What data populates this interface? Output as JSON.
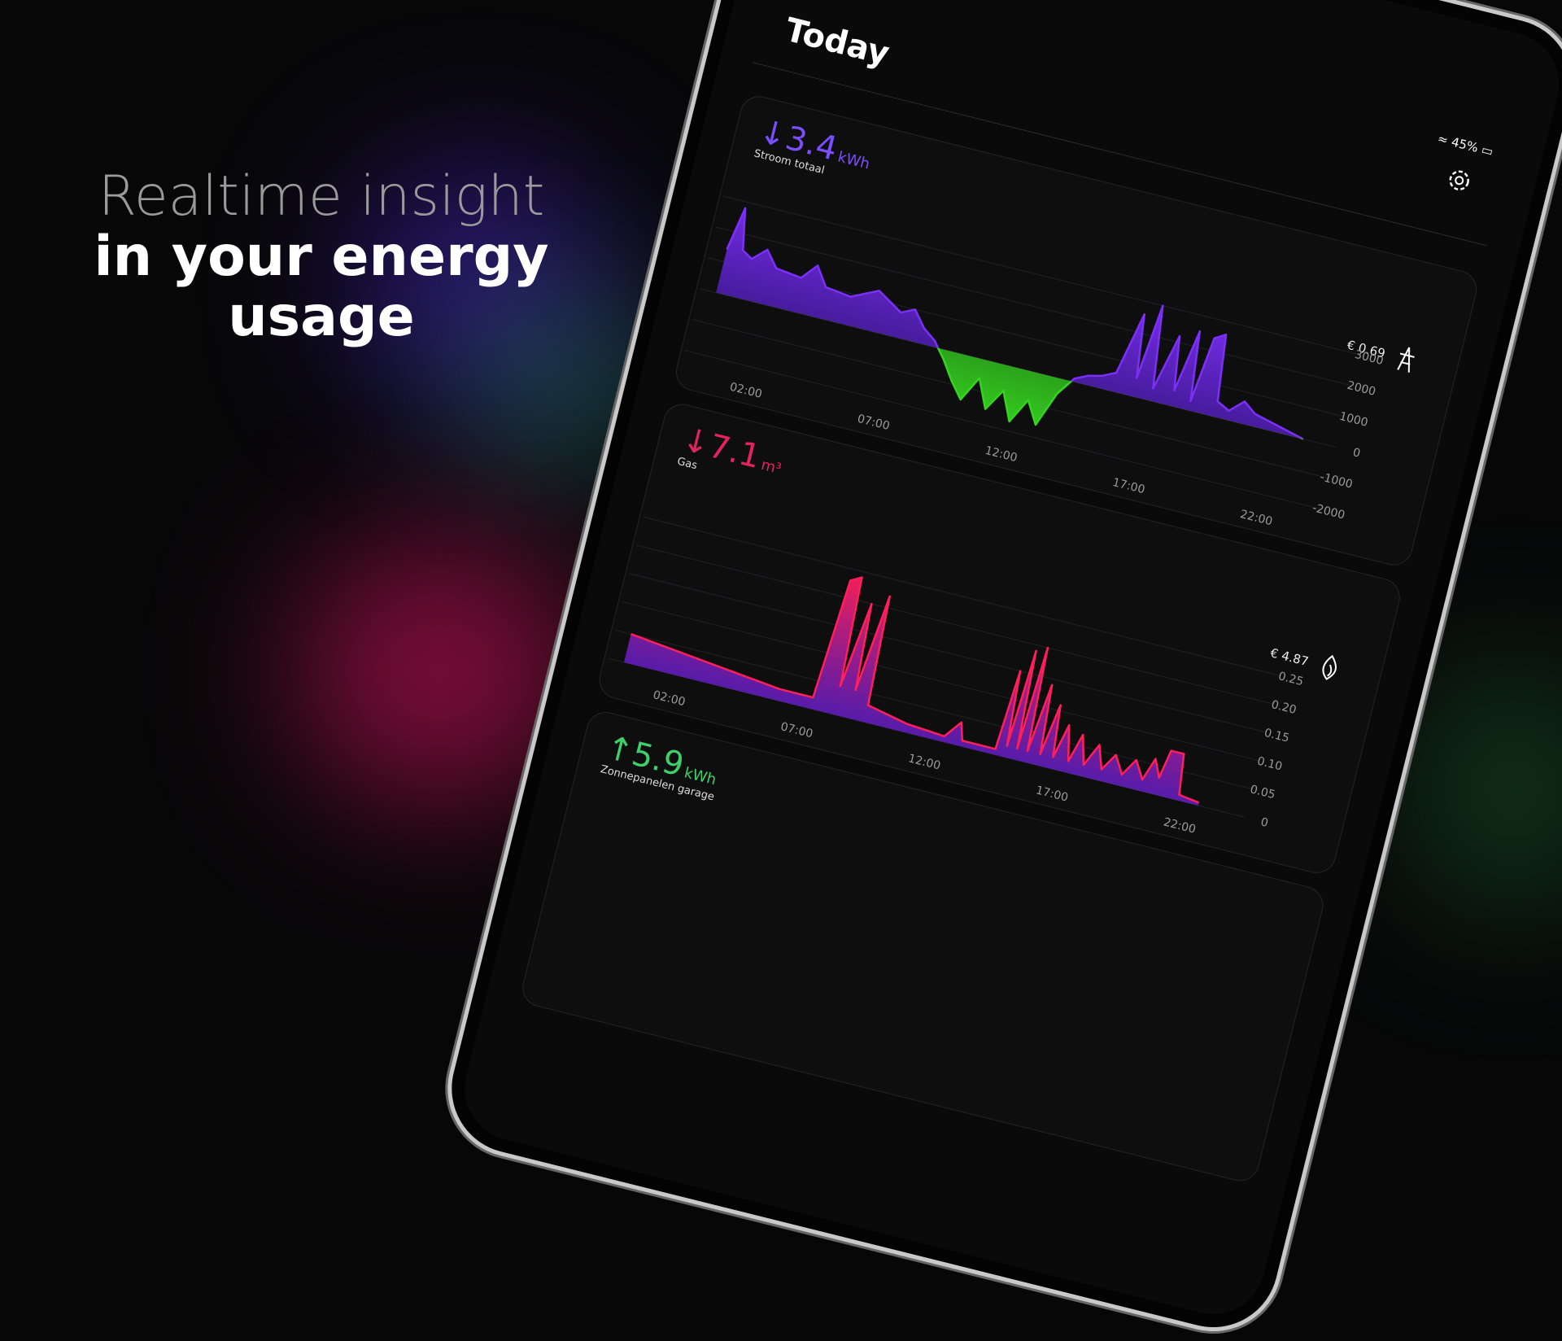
{
  "headline": {
    "light": "Realtime insight",
    "bold": "in your energy usage"
  },
  "status": {
    "battery": "45%"
  },
  "screen_title": "Today",
  "cards": [
    {
      "direction": "↓",
      "value": "3.4",
      "unit": "kWh",
      "label": "Stroom totaal",
      "cost": "€ 0.69",
      "color": "#7c4dff",
      "chart": {
        "type": "area",
        "x": [
          0,
          0.3,
          0.6,
          1,
          1.5,
          2,
          3,
          3.5,
          4,
          5,
          6,
          7,
          7.5,
          8,
          8.5,
          9,
          9.5,
          10,
          10.5,
          11,
          11.5,
          12,
          12.5,
          13,
          13.5,
          14,
          14.5,
          15,
          15.5,
          16,
          16.3,
          16.6,
          17,
          17.5,
          17.8,
          18.2,
          18.5,
          18.8,
          19.2,
          19.5,
          20,
          20.5,
          21,
          22,
          23
        ],
        "values": [
          1400,
          2800,
          1500,
          1300,
          1700,
          1200,
          1100,
          1600,
          1000,
          900,
          1300,
          800,
          1000,
          500,
          200,
          -300,
          -900,
          -1400,
          -600,
          -1500,
          -800,
          -1700,
          -900,
          -1600,
          -500,
          100,
          300,
          400,
          600,
          2600,
          600,
          3000,
          400,
          2200,
          500,
          2500,
          300,
          2400,
          2600,
          500,
          300,
          700,
          400,
          200,
          0
        ],
        "xlim": [
          0,
          24
        ],
        "xticks": [
          {
            "value": 2,
            "label": "02:00"
          },
          {
            "value": 7,
            "label": "07:00"
          },
          {
            "value": 12,
            "label": "12:00"
          },
          {
            "value": 17,
            "label": "17:00"
          },
          {
            "value": 22,
            "label": "22:00"
          }
        ],
        "ylim": [
          -2000,
          3500
        ],
        "yticks": [
          -2000,
          -1000,
          0,
          1000,
          2000,
          3000
        ],
        "color": "#7b2ff7",
        "negative_color": "#35d41f",
        "fill_to": "#3a1490",
        "grid": true
      }
    },
    {
      "direction": "↓",
      "value": "7.1",
      "unit": "m³",
      "label": "Gas",
      "cost": "€ 4.87",
      "color": "#e0245e",
      "chart": {
        "type": "area",
        "x": [
          0,
          6,
          7.3,
          7.6,
          8,
          8.2,
          8.6,
          8.8,
          9.2,
          9.4,
          11,
          12.5,
          13,
          13.2,
          14.5,
          14.7,
          14.9,
          15.1,
          15.3,
          15.5,
          15.7,
          16,
          16.2,
          16.5,
          16.7,
          17,
          17.3,
          17.6,
          17.9,
          18.3,
          18.6,
          19,
          19.4,
          19.8,
          20.2,
          20.5,
          20.8,
          21,
          21.5,
          21.7,
          22.5
        ],
        "values": [
          0.05,
          0.02,
          0.02,
          0.23,
          0.24,
          0.05,
          0.2,
          0.05,
          0.22,
          0.03,
          0.015,
          0.01,
          0.04,
          0.01,
          0.01,
          0.15,
          0.02,
          0.19,
          0.02,
          0.2,
          0.02,
          0.14,
          0.02,
          0.11,
          0.02,
          0.08,
          0.02,
          0.07,
          0.02,
          0.06,
          0.02,
          0.05,
          0.02,
          0.05,
          0.02,
          0.06,
          0.03,
          0.08,
          0.08,
          0.01,
          0.005
        ],
        "xlim": [
          0,
          24
        ],
        "xticks": [
          {
            "value": 2,
            "label": "02:00"
          },
          {
            "value": 7,
            "label": "07:00"
          },
          {
            "value": 12,
            "label": "12:00"
          },
          {
            "value": 17,
            "label": "17:00"
          },
          {
            "value": 22,
            "label": "22:00"
          }
        ],
        "ylim": [
          0,
          0.3
        ],
        "yticks": [
          0,
          0.05,
          {
            "value": 0.1,
            "label": "0.10"
          },
          0.15,
          {
            "value": 0.2,
            "label": "0.20"
          },
          0.25
        ],
        "color": "#ff1f5a",
        "fill_to": "#6a1fd0",
        "grid": true
      }
    },
    {
      "direction": "↑",
      "value": "5.9",
      "unit": "kWh",
      "label": "Zonnepanelen garage",
      "color": "#3fcf6a"
    }
  ]
}
